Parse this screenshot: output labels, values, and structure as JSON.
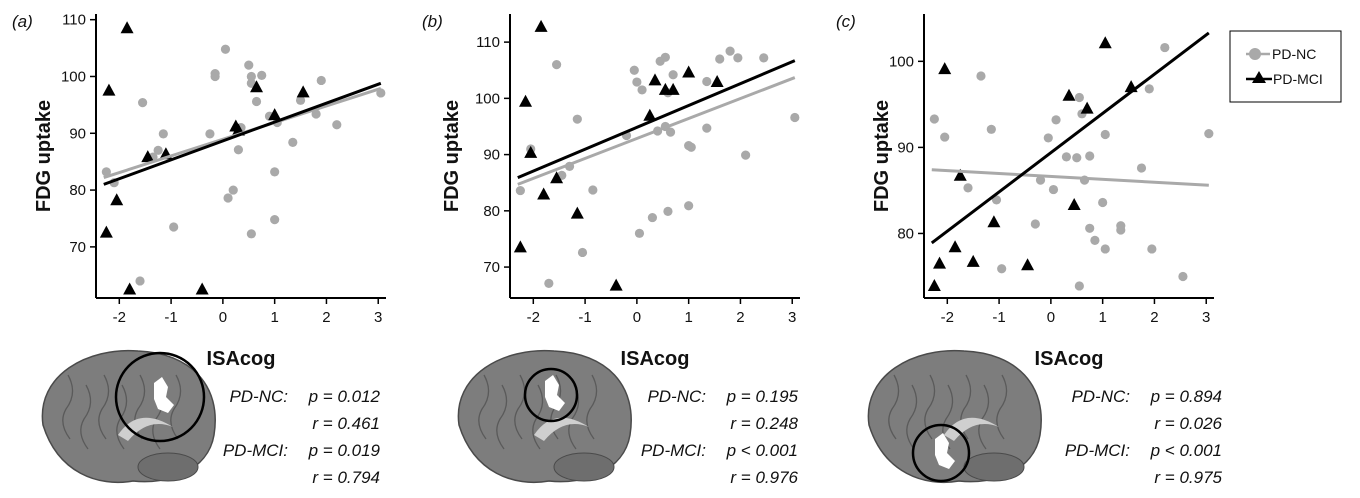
{
  "colors": {
    "nc": "#a9a9a9",
    "mci": "#000000",
    "brain": "#7d7d7d"
  },
  "legend": {
    "nc_label": "PD-NC",
    "mci_label": "PD-MCI"
  },
  "chart_data": [
    {
      "type": "scatter",
      "panel_label": "(a)",
      "xlabel": "ISAcog",
      "ylabel": "FDG uptake",
      "xlim": [
        -2.45,
        3.15
      ],
      "ylim": [
        61,
        111
      ],
      "xticks": [
        -2,
        -1,
        0,
        1,
        2,
        3
      ],
      "yticks": [
        70,
        80,
        90,
        100,
        110
      ],
      "series": [
        {
          "name": "PD-NC",
          "points": [
            [
              -2.25,
              83.2
            ],
            [
              -2.1,
              81.3
            ],
            [
              -1.6,
              64
            ],
            [
              -1.55,
              95.4
            ],
            [
              -1.35,
              85.8
            ],
            [
              -1.25,
              87
            ],
            [
              -1.15,
              89.9
            ],
            [
              -0.95,
              73.5
            ],
            [
              -0.25,
              89.9
            ],
            [
              -0.15,
              100.5
            ],
            [
              -0.15,
              100
            ],
            [
              0.05,
              104.8
            ],
            [
              0.1,
              78.6
            ],
            [
              0.2,
              80
            ],
            [
              0.3,
              87.1
            ],
            [
              0.35,
              91
            ],
            [
              0.5,
              102
            ],
            [
              0.55,
              100
            ],
            [
              0.55,
              98.8
            ],
            [
              0.55,
              72.3
            ],
            [
              0.65,
              95.6
            ],
            [
              0.75,
              100.2
            ],
            [
              0.9,
              93
            ],
            [
              1.0,
              74.8
            ],
            [
              1.0,
              83.2
            ],
            [
              1.05,
              91.9
            ],
            [
              1.35,
              88.4
            ],
            [
              1.5,
              95.8
            ],
            [
              1.8,
              93.4
            ],
            [
              1.9,
              99.3
            ],
            [
              2.2,
              91.5
            ],
            [
              3.05,
              97.1
            ]
          ],
          "fit": [
            [
              -2.3,
              82.2
            ],
            [
              3.05,
              97.9
            ]
          ]
        },
        {
          "name": "PD-MCI",
          "points": [
            [
              -2.25,
              72.5
            ],
            [
              -2.2,
              97.5
            ],
            [
              -2.05,
              78.2
            ],
            [
              -1.85,
              108.5
            ],
            [
              -1.8,
              62.5
            ],
            [
              -1.45,
              85.8
            ],
            [
              -1.1,
              86.3
            ],
            [
              -0.4,
              62.5
            ],
            [
              0.25,
              91.2
            ],
            [
              0.3,
              90.5
            ],
            [
              0.65,
              98.1
            ],
            [
              1.0,
              93.2
            ],
            [
              1.55,
              97.2
            ]
          ],
          "fit": [
            [
              -2.3,
              81
            ],
            [
              3.05,
              98.8
            ]
          ]
        }
      ],
      "stats": {
        "nc_name": "PD-NC:",
        "nc_p": "p = 0.012",
        "nc_r": "r = 0.461",
        "mci_name": "PD-MCI:",
        "mci_p": "p = 0.019",
        "mci_r": "r = 0.794"
      }
    },
    {
      "type": "scatter",
      "panel_label": "(b)",
      "xlabel": "ISAcog",
      "ylabel": "FDG uptake",
      "xlim": [
        -2.45,
        3.15
      ],
      "ylim": [
        64.5,
        115
      ],
      "xticks": [
        -2,
        -1,
        0,
        1,
        2,
        3
      ],
      "yticks": [
        70,
        80,
        90,
        100,
        110
      ],
      "series": [
        {
          "name": "PD-NC",
          "points": [
            [
              -2.25,
              83.6
            ],
            [
              -2.05,
              91
            ],
            [
              -1.7,
              67.1
            ],
            [
              -1.55,
              106
            ],
            [
              -1.45,
              86.3
            ],
            [
              -1.3,
              87.9
            ],
            [
              -1.15,
              96.3
            ],
            [
              -1.05,
              72.6
            ],
            [
              -0.85,
              83.7
            ],
            [
              -0.2,
              93.4
            ],
            [
              -0.05,
              105
            ],
            [
              0.0,
              102.9
            ],
            [
              0.05,
              76
            ],
            [
              0.1,
              101.5
            ],
            [
              0.3,
              78.8
            ],
            [
              0.4,
              94.2
            ],
            [
              0.45,
              106.6
            ],
            [
              0.55,
              107.3
            ],
            [
              0.55,
              95
            ],
            [
              0.6,
              79.9
            ],
            [
              0.6,
              101
            ],
            [
              0.65,
              94
            ],
            [
              0.7,
              104.2
            ],
            [
              1.0,
              91.6
            ],
            [
              1.0,
              80.9
            ],
            [
              1.05,
              91.3
            ],
            [
              1.35,
              94.7
            ],
            [
              1.35,
              103
            ],
            [
              1.6,
              107
            ],
            [
              1.8,
              108.4
            ],
            [
              1.95,
              107.2
            ],
            [
              2.1,
              89.9
            ],
            [
              2.45,
              107.2
            ],
            [
              3.05,
              96.6
            ]
          ],
          "fit": [
            [
              -2.3,
              84.7
            ],
            [
              3.05,
              103.7
            ]
          ]
        },
        {
          "name": "PD-MCI",
          "points": [
            [
              -2.25,
              73.5
            ],
            [
              -2.15,
              99.4
            ],
            [
              -2.05,
              90.3
            ],
            [
              -1.85,
              112.7
            ],
            [
              -1.8,
              82.9
            ],
            [
              -1.55,
              85.8
            ],
            [
              -1.15,
              79.5
            ],
            [
              -0.4,
              66.7
            ],
            [
              0.25,
              96.9
            ],
            [
              0.35,
              103.2
            ],
            [
              0.55,
              101.5
            ],
            [
              0.7,
              101.5
            ],
            [
              1.0,
              104.6
            ],
            [
              1.55,
              102.9
            ]
          ],
          "fit": [
            [
              -2.3,
              85.9
            ],
            [
              3.05,
              106.7
            ]
          ]
        }
      ],
      "stats": {
        "nc_name": "PD-NC:",
        "nc_p": "p = 0.195",
        "nc_r": "r = 0.248",
        "mci_name": "PD-MCI:",
        "mci_p": "p < 0.001",
        "mci_r": "r = 0.976"
      }
    },
    {
      "type": "scatter",
      "panel_label": "(c)",
      "xlabel": "ISAcog",
      "ylabel": "FDG uptake",
      "xlim": [
        -2.45,
        3.15
      ],
      "ylim": [
        72.5,
        105.5
      ],
      "xticks": [
        -2,
        -1,
        0,
        1,
        2,
        3
      ],
      "yticks": [
        80,
        90,
        100
      ],
      "series": [
        {
          "name": "PD-NC",
          "points": [
            [
              -2.25,
              93.3
            ],
            [
              -2.05,
              91.2
            ],
            [
              -1.6,
              85.3
            ],
            [
              -1.35,
              98.3
            ],
            [
              -1.15,
              92.1
            ],
            [
              -1.05,
              83.9
            ],
            [
              -0.95,
              75.9
            ],
            [
              -0.3,
              81.1
            ],
            [
              -0.2,
              86.2
            ],
            [
              -0.05,
              91.1
            ],
            [
              0.05,
              85.1
            ],
            [
              0.1,
              93.2
            ],
            [
              0.3,
              88.9
            ],
            [
              0.5,
              88.8
            ],
            [
              0.55,
              95.8
            ],
            [
              0.55,
              73.9
            ],
            [
              0.6,
              93.9
            ],
            [
              0.65,
              86.2
            ],
            [
              0.75,
              89
            ],
            [
              0.75,
              80.6
            ],
            [
              0.85,
              79.2
            ],
            [
              1.0,
              83.6
            ],
            [
              1.05,
              91.5
            ],
            [
              1.05,
              78.2
            ],
            [
              1.35,
              80.4
            ],
            [
              1.35,
              80.9
            ],
            [
              1.75,
              87.6
            ],
            [
              1.9,
              96.8
            ],
            [
              1.95,
              78.2
            ],
            [
              2.2,
              101.6
            ],
            [
              2.55,
              75
            ],
            [
              3.05,
              91.6
            ]
          ],
          "fit": [
            [
              -2.3,
              87.4
            ],
            [
              3.05,
              85.6
            ]
          ]
        },
        {
          "name": "PD-MCI",
          "points": [
            [
              -2.25,
              73.9
            ],
            [
              -2.15,
              76.5
            ],
            [
              -2.05,
              99.1
            ],
            [
              -1.85,
              78.4
            ],
            [
              -1.75,
              86.7
            ],
            [
              -1.5,
              76.7
            ],
            [
              -1.1,
              81.3
            ],
            [
              -0.45,
              76.3
            ],
            [
              0.35,
              96
            ],
            [
              0.45,
              83.3
            ],
            [
              0.7,
              94.5
            ],
            [
              1.05,
              102.1
            ],
            [
              1.55,
              97
            ]
          ],
          "fit": [
            [
              -2.3,
              78.9
            ],
            [
              3.05,
              103.3
            ]
          ]
        }
      ],
      "stats": {
        "nc_name": "PD-NC:",
        "nc_p": "p = 0.894",
        "nc_r": "r = 0.026",
        "mci_name": "PD-MCI:",
        "mci_p": "p < 0.001",
        "mci_r": "r = 0.975"
      }
    }
  ]
}
